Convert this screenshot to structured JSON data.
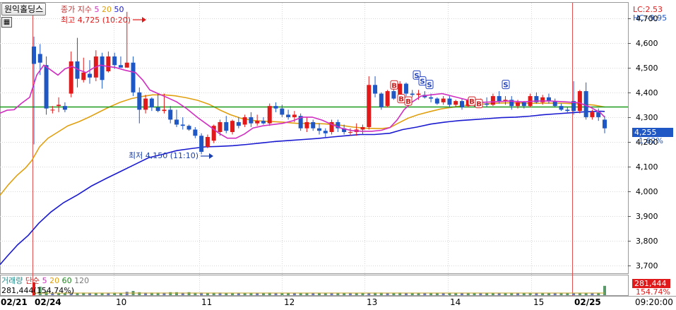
{
  "stock_name": "원익홀딩스",
  "price_legend": {
    "title": "종가 지수",
    "ma5": "5",
    "ma20": "20",
    "ma50": "50"
  },
  "volume_legend": {
    "title": "거래량",
    "type": "단순",
    "ma5": "5",
    "ma20": "20",
    "ma60": "60",
    "ma120": "120"
  },
  "volume_readout": "281,444(154.74%)",
  "high_annotation": "최고 4,725 (10:20)",
  "low_annotation": "최저 4,150 (11:10)",
  "right_top": {
    "lc": "LC:2.53",
    "hc": "HC:-9.95"
  },
  "current_price": "4,255",
  "current_change": "-1.62%",
  "current_volume": "281,444",
  "current_volume_pct": "154.74%",
  "time_readout": "09:20:00",
  "y_axis": {
    "ticks": [
      "4,700",
      "4,600",
      "4,500",
      "4,400",
      "4,300",
      "4,200",
      "4,100",
      "4,000",
      "3,900",
      "3,800",
      "3,700"
    ]
  },
  "x_axis": {
    "ticks": [
      "02/21",
      "02/24",
      "10",
      "11",
      "12",
      "13",
      "14",
      "15",
      "02/25"
    ]
  },
  "colors": {
    "up": "#e01a1a",
    "down": "#1f57c5",
    "ma5": "#d02ec0",
    "ma20": "#e0a010",
    "ma50": "#1a1ad0",
    "hline": "#1a9a1a",
    "vline": "#e05050",
    "grid": "#d6d6d6"
  },
  "chart_data": {
    "type": "candlestick",
    "ylim": [
      3670,
      4750
    ],
    "reference_level": 4341,
    "candles": [
      [
        4585,
        4625,
        4190,
        4515
      ],
      [
        4555,
        4595,
        4470,
        4520
      ],
      [
        4510,
        4545,
        4310,
        4335
      ],
      [
        4330,
        4345,
        4315,
        4330
      ],
      [
        4345,
        4380,
        4320,
        4350
      ],
      [
        4345,
        4360,
        4320,
        4330
      ],
      [
        4395,
        4565,
        4380,
        4525
      ],
      [
        4525,
        4620,
        4420,
        4455
      ],
      [
        4450,
        4540,
        4440,
        4480
      ],
      [
        4475,
        4530,
        4435,
        4460
      ],
      [
        4460,
        4570,
        4445,
        4545
      ],
      [
        4545,
        4560,
        4415,
        4450
      ],
      [
        4485,
        4565,
        4480,
        4545
      ],
      [
        4545,
        4560,
        4495,
        4510
      ],
      [
        4510,
        4545,
        4500,
        4500
      ],
      [
        4500,
        4725,
        4500,
        4520
      ],
      [
        4520,
        4545,
        4385,
        4400
      ],
      [
        4400,
        4420,
        4275,
        4330
      ],
      [
        4330,
        4390,
        4315,
        4375
      ],
      [
        4375,
        4380,
        4325,
        4340
      ],
      [
        4340,
        4395,
        4320,
        4325
      ],
      [
        4325,
        4395,
        4315,
        4330
      ],
      [
        4330,
        4345,
        4275,
        4290
      ],
      [
        4290,
        4330,
        4260,
        4270
      ],
      [
        4270,
        4300,
        4250,
        4265
      ],
      [
        4265,
        4270,
        4245,
        4250
      ],
      [
        4250,
        4260,
        4215,
        4225
      ],
      [
        4225,
        4235,
        4150,
        4160
      ],
      [
        4180,
        4230,
        4175,
        4220
      ],
      [
        4205,
        4270,
        4195,
        4265
      ],
      [
        4240,
        4290,
        4225,
        4280
      ],
      [
        4280,
        4305,
        4235,
        4245
      ],
      [
        4240,
        4290,
        4230,
        4285
      ],
      [
        4280,
        4300,
        4255,
        4265
      ],
      [
        4270,
        4310,
        4260,
        4300
      ],
      [
        4300,
        4320,
        4260,
        4275
      ],
      [
        4275,
        4310,
        4265,
        4285
      ],
      [
        4285,
        4300,
        4270,
        4275
      ],
      [
        4275,
        4355,
        4265,
        4345
      ],
      [
        4345,
        4360,
        4320,
        4335
      ],
      [
        4335,
        4350,
        4300,
        4310
      ],
      [
        4310,
        4330,
        4290,
        4300
      ],
      [
        4300,
        4325,
        4280,
        4310
      ],
      [
        4305,
        4315,
        4245,
        4255
      ],
      [
        4255,
        4300,
        4240,
        4280
      ],
      [
        4280,
        4290,
        4245,
        4255
      ],
      [
        4255,
        4275,
        4230,
        4245
      ],
      [
        4245,
        4255,
        4220,
        4235
      ],
      [
        4240,
        4290,
        4230,
        4280
      ],
      [
        4280,
        4290,
        4240,
        4255
      ],
      [
        4255,
        4270,
        4230,
        4240
      ],
      [
        4240,
        4255,
        4225,
        4240
      ],
      [
        4240,
        4275,
        4225,
        4250
      ],
      [
        4250,
        4270,
        4230,
        4260
      ],
      [
        4260,
        4465,
        4250,
        4430
      ],
      [
        4430,
        4465,
        4380,
        4395
      ],
      [
        4395,
        4400,
        4330,
        4340
      ],
      [
        4345,
        4410,
        4340,
        4405
      ],
      [
        4405,
        4445,
        4370,
        4375
      ],
      [
        4375,
        4445,
        4360,
        4435
      ],
      [
        4435,
        4440,
        4385,
        4395
      ],
      [
        4395,
        4410,
        4380,
        4390
      ],
      [
        4390,
        4410,
        4370,
        4395
      ],
      [
        4390,
        4405,
        4375,
        4380
      ],
      [
        4380,
        4395,
        4360,
        4375
      ],
      [
        4375,
        4380,
        4350,
        4355
      ],
      [
        4360,
        4385,
        4350,
        4375
      ],
      [
        4375,
        4385,
        4340,
        4350
      ],
      [
        4350,
        4370,
        4340,
        4365
      ],
      [
        4365,
        4375,
        4330,
        4340
      ],
      [
        4345,
        4375,
        4340,
        4370
      ],
      [
        4365,
        4380,
        4340,
        4350
      ],
      [
        4350,
        4375,
        4340,
        4355
      ],
      [
        4355,
        4380,
        4340,
        4350
      ],
      [
        4350,
        4395,
        4345,
        4385
      ],
      [
        4385,
        4405,
        4355,
        4365
      ],
      [
        4365,
        4385,
        4350,
        4370
      ],
      [
        4370,
        4385,
        4330,
        4345
      ],
      [
        4345,
        4370,
        4335,
        4360
      ],
      [
        4360,
        4365,
        4335,
        4345
      ],
      [
        4345,
        4395,
        4340,
        4385
      ],
      [
        4385,
        4400,
        4355,
        4360
      ],
      [
        4360,
        4390,
        4350,
        4380
      ],
      [
        4380,
        4395,
        4355,
        4365
      ],
      [
        4365,
        4375,
        4340,
        4345
      ],
      [
        4345,
        4355,
        4325,
        4330
      ],
      [
        4330,
        4340,
        4320,
        4325
      ],
      [
        4365,
        4445,
        4310,
        4325
      ],
      [
        4325,
        4410,
        4315,
        4405
      ],
      [
        4405,
        4440,
        4290,
        4300
      ],
      [
        4300,
        4330,
        4290,
        4320
      ],
      [
        4320,
        4335,
        4285,
        4300
      ],
      [
        4290,
        4305,
        4235,
        4255
      ]
    ],
    "ma5": [
      [
        0,
        4316
      ],
      [
        10,
        4328
      ],
      [
        20,
        4330
      ],
      [
        30,
        4355
      ],
      [
        42,
        4380
      ],
      [
        52,
        4470
      ],
      [
        62,
        4510
      ],
      [
        72,
        4490
      ],
      [
        82,
        4470
      ],
      [
        92,
        4495
      ],
      [
        102,
        4505
      ],
      [
        112,
        4490
      ],
      [
        122,
        4480
      ],
      [
        132,
        4498
      ],
      [
        142,
        4510
      ],
      [
        152,
        4505
      ],
      [
        164,
        4500
      ],
      [
        176,
        4490
      ],
      [
        192,
        4480
      ],
      [
        202,
        4450
      ],
      [
        212,
        4410
      ],
      [
        224,
        4395
      ],
      [
        236,
        4380
      ],
      [
        250,
        4362
      ],
      [
        264,
        4335
      ],
      [
        280,
        4298
      ],
      [
        296,
        4265
      ],
      [
        310,
        4235
      ],
      [
        322,
        4215
      ],
      [
        334,
        4215
      ],
      [
        346,
        4232
      ],
      [
        358,
        4256
      ],
      [
        372,
        4265
      ],
      [
        386,
        4270
      ],
      [
        400,
        4275
      ],
      [
        414,
        4285
      ],
      [
        428,
        4300
      ],
      [
        442,
        4300
      ],
      [
        456,
        4288
      ],
      [
        470,
        4270
      ],
      [
        484,
        4255
      ],
      [
        498,
        4246
      ],
      [
        512,
        4243
      ],
      [
        526,
        4243
      ],
      [
        540,
        4247
      ],
      [
        552,
        4258
      ],
      [
        562,
        4288
      ],
      [
        572,
        4330
      ],
      [
        584,
        4362
      ],
      [
        596,
        4385
      ],
      [
        610,
        4390
      ],
      [
        626,
        4395
      ],
      [
        640,
        4385
      ],
      [
        654,
        4375
      ],
      [
        668,
        4365
      ],
      [
        682,
        4360
      ],
      [
        700,
        4362
      ],
      [
        720,
        4365
      ],
      [
        740,
        4362
      ],
      [
        760,
        4365
      ],
      [
        780,
        4365
      ],
      [
        800,
        4362
      ],
      [
        820,
        4358
      ],
      [
        836,
        4340
      ],
      [
        850,
        4318
      ],
      [
        856,
        4300
      ]
    ],
    "ma20": [
      [
        0,
        3985
      ],
      [
        12,
        4028
      ],
      [
        24,
        4065
      ],
      [
        36,
        4095
      ],
      [
        45,
        4125
      ],
      [
        56,
        4180
      ],
      [
        68,
        4215
      ],
      [
        82,
        4240
      ],
      [
        96,
        4265
      ],
      [
        112,
        4282
      ],
      [
        126,
        4300
      ],
      [
        140,
        4320
      ],
      [
        154,
        4340
      ],
      [
        170,
        4360
      ],
      [
        186,
        4375
      ],
      [
        200,
        4383
      ],
      [
        216,
        4390
      ],
      [
        232,
        4390
      ],
      [
        248,
        4386
      ],
      [
        264,
        4378
      ],
      [
        280,
        4368
      ],
      [
        296,
        4352
      ],
      [
        312,
        4328
      ],
      [
        326,
        4310
      ],
      [
        342,
        4295
      ],
      [
        360,
        4286
      ],
      [
        380,
        4283
      ],
      [
        400,
        4280
      ],
      [
        420,
        4275
      ],
      [
        440,
        4275
      ],
      [
        460,
        4273
      ],
      [
        480,
        4268
      ],
      [
        500,
        4260
      ],
      [
        520,
        4255
      ],
      [
        540,
        4254
      ],
      [
        552,
        4258
      ],
      [
        564,
        4276
      ],
      [
        578,
        4296
      ],
      [
        592,
        4310
      ],
      [
        608,
        4322
      ],
      [
        624,
        4333
      ],
      [
        640,
        4340
      ],
      [
        660,
        4348
      ],
      [
        680,
        4352
      ],
      [
        700,
        4356
      ],
      [
        720,
        4358
      ],
      [
        740,
        4357
      ],
      [
        760,
        4356
      ],
      [
        780,
        4357
      ],
      [
        800,
        4356
      ],
      [
        820,
        4353
      ],
      [
        840,
        4349
      ],
      [
        856,
        4341
      ]
    ],
    "ma50": [
      [
        0,
        3705
      ],
      [
        10,
        3738
      ],
      [
        25,
        3785
      ],
      [
        40,
        3823
      ],
      [
        55,
        3872
      ],
      [
        72,
        3917
      ],
      [
        90,
        3955
      ],
      [
        110,
        3987
      ],
      [
        130,
        4023
      ],
      [
        150,
        4052
      ],
      [
        170,
        4080
      ],
      [
        190,
        4108
      ],
      [
        210,
        4136
      ],
      [
        230,
        4150
      ],
      [
        250,
        4165
      ],
      [
        270,
        4173
      ],
      [
        290,
        4180
      ],
      [
        310,
        4182
      ],
      [
        330,
        4185
      ],
      [
        350,
        4190
      ],
      [
        370,
        4196
      ],
      [
        390,
        4202
      ],
      [
        410,
        4206
      ],
      [
        430,
        4210
      ],
      [
        450,
        4214
      ],
      [
        470,
        4220
      ],
      [
        490,
        4225
      ],
      [
        510,
        4230
      ],
      [
        530,
        4230
      ],
      [
        552,
        4235
      ],
      [
        570,
        4250
      ],
      [
        590,
        4260
      ],
      [
        610,
        4272
      ],
      [
        630,
        4280
      ],
      [
        650,
        4286
      ],
      [
        670,
        4290
      ],
      [
        690,
        4294
      ],
      [
        710,
        4298
      ],
      [
        730,
        4300
      ],
      [
        750,
        4304
      ],
      [
        770,
        4310
      ],
      [
        790,
        4314
      ],
      [
        810,
        4318
      ],
      [
        830,
        4322
      ],
      [
        850,
        4324
      ],
      [
        856,
        4323
      ]
    ],
    "signals": [
      {
        "kind": "B",
        "x": 558,
        "v": 4430
      },
      {
        "kind": "B",
        "x": 568,
        "v": 4375
      },
      {
        "kind": "B",
        "x": 578,
        "v": 4365
      },
      {
        "kind": "S",
        "x": 590,
        "v": 4470
      },
      {
        "kind": "S",
        "x": 598,
        "v": 4446
      },
      {
        "kind": "S",
        "x": 608,
        "v": 4432
      },
      {
        "kind": "B",
        "x": 668,
        "v": 4365
      },
      {
        "kind": "B",
        "x": 678,
        "v": 4355
      },
      {
        "kind": "S",
        "x": 716,
        "v": 4432
      }
    ],
    "volume": [
      30,
      20,
      9,
      6,
      6,
      5,
      6,
      5,
      6,
      5,
      5,
      5,
      5,
      6,
      5,
      8,
      10,
      7,
      6,
      6,
      6,
      6,
      7,
      7,
      6,
      7,
      6,
      6,
      5,
      6,
      6,
      5,
      5,
      5,
      5,
      5,
      5,
      5,
      6,
      5,
      5,
      5,
      5,
      5,
      5,
      5,
      5,
      5,
      5,
      5,
      5,
      5,
      5,
      5,
      5,
      6,
      6,
      5,
      5,
      6,
      5,
      5,
      5,
      5,
      5,
      5,
      5,
      5,
      5,
      5,
      5,
      5,
      5,
      5,
      5,
      5,
      5,
      5,
      5,
      5,
      5,
      5,
      5,
      5,
      5,
      5,
      5,
      5,
      5,
      5,
      5,
      5,
      22
    ]
  }
}
